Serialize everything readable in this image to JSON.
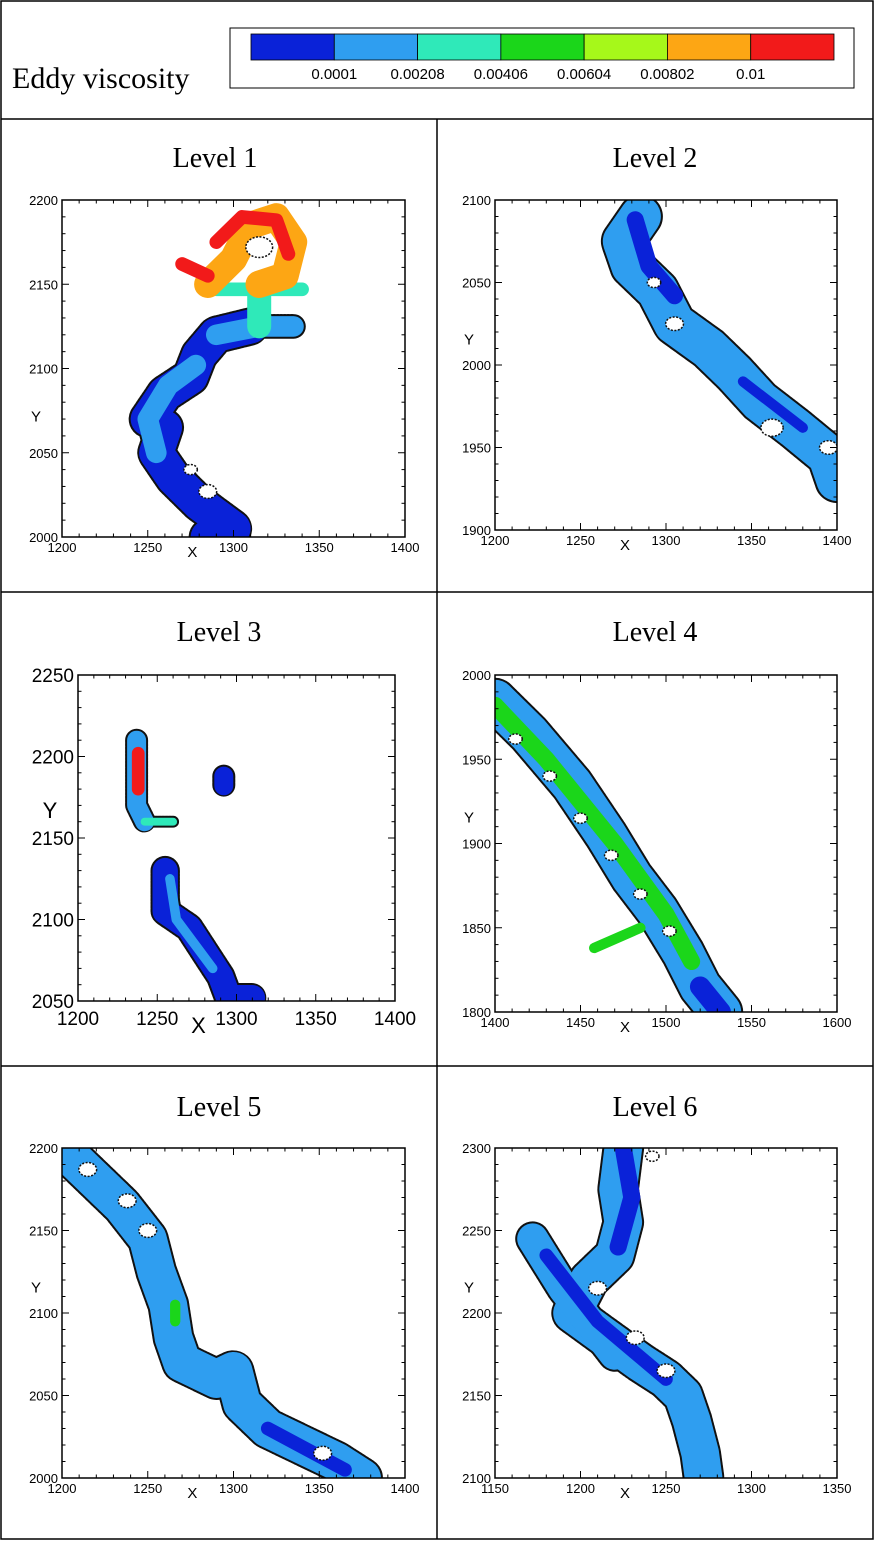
{
  "figure": {
    "header_label": "Eddy  viscosity"
  },
  "colorbar": {
    "labels": [
      "0.0001",
      "0.00208",
      "0.00406",
      "0.00604",
      "0.00802",
      "0.01"
    ],
    "colors": [
      "#0a22d8",
      "#2f9ef0",
      "#2fe9b9",
      "#1bd61a",
      "#a6f81a",
      "#fda614",
      "#f21a1a"
    ]
  },
  "chart_data": [
    {
      "type": "contour",
      "title": "Level 1",
      "xlabel": "X",
      "ylabel": "Y",
      "xlim": [
        1200,
        1400
      ],
      "ylim": [
        2000,
        2200
      ],
      "xticks": [
        1200,
        1250,
        1300,
        1350,
        1400
      ],
      "yticks": [
        2000,
        2050,
        2100,
        2150,
        2200
      ],
      "dominant_level": "0.0001-0.00208, up to 0.01 near x 1270-1335, y 2145-2195"
    },
    {
      "type": "contour",
      "title": "Level 2",
      "xlabel": "X",
      "ylabel": "Y",
      "xlim": [
        1200,
        1400
      ],
      "ylim": [
        1900,
        2100
      ],
      "xticks": [
        1200,
        1250,
        1300,
        1350,
        1400
      ],
      "yticks": [
        1900,
        1950,
        2000,
        2050,
        2100
      ],
      "dominant_level": "0.0001-0.00208"
    },
    {
      "type": "contour",
      "title": "Level 3",
      "xlabel": "X",
      "ylabel": "Y",
      "xlim": [
        1200,
        1400
      ],
      "ylim": [
        2050,
        2250
      ],
      "xticks": [
        1200,
        1250,
        1300,
        1350,
        1400
      ],
      "yticks": [
        2050,
        2100,
        2150,
        2200,
        2250
      ],
      "dominant_level": "0.0001, up to 0.01 near x 1235-1245, y 2180-2200"
    },
    {
      "type": "contour",
      "title": "Level  4",
      "xlabel": "X",
      "ylabel": "Y",
      "xlim": [
        1400,
        1600
      ],
      "ylim": [
        1800,
        2000
      ],
      "xticks": [
        1400,
        1450,
        1500,
        1550,
        1600
      ],
      "yticks": [
        1800,
        1850,
        1900,
        1950,
        2000
      ],
      "dominant_level": "0.00208-0.00604"
    },
    {
      "type": "contour",
      "title": "Level 5",
      "xlabel": "X",
      "ylabel": "Y",
      "xlim": [
        1200,
        1400
      ],
      "ylim": [
        2000,
        2200
      ],
      "xticks": [
        1200,
        1250,
        1300,
        1350,
        1400
      ],
      "yticks": [
        2000,
        2050,
        2100,
        2150,
        2200
      ],
      "dominant_level": "0.00208"
    },
    {
      "type": "contour",
      "title": "Level 6",
      "xlabel": "X",
      "ylabel": "Y",
      "xlim": [
        1150,
        1350
      ],
      "ylim": [
        2100,
        2300
      ],
      "xticks": [
        1150,
        1200,
        1250,
        1300,
        1350
      ],
      "yticks": [
        2100,
        2150,
        2200,
        2250,
        2300
      ],
      "dominant_level": "0.0001-0.00208"
    }
  ]
}
